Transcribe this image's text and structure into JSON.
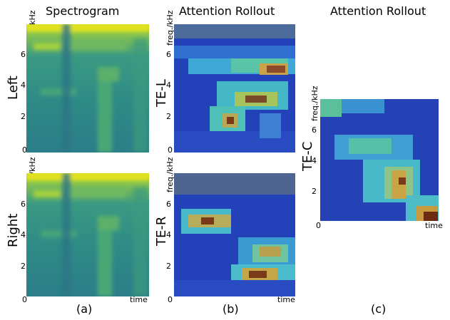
{
  "columns": [
    {
      "title": "Spectrogram",
      "caption": "(a)"
    },
    {
      "title": "Attention Rollout",
      "caption": "(b)"
    },
    {
      "title": "Attention Rollout",
      "caption": "(c)"
    }
  ],
  "rows": {
    "top": "Left",
    "bottom": "Right"
  },
  "panels": {
    "tel": "TE-L",
    "ter": "TE-R",
    "tec": "TE-C"
  },
  "axes": {
    "freq_label": "freq./kHz",
    "time_label": "time",
    "y_ticks": [
      "0",
      "2",
      "4",
      "6"
    ]
  },
  "colors": {
    "viridis_low": "#2b8a8a",
    "viridis_high": "#e6e51a",
    "jet_low": "#1f3fb8",
    "jet_high": "#8a1a0a"
  }
}
